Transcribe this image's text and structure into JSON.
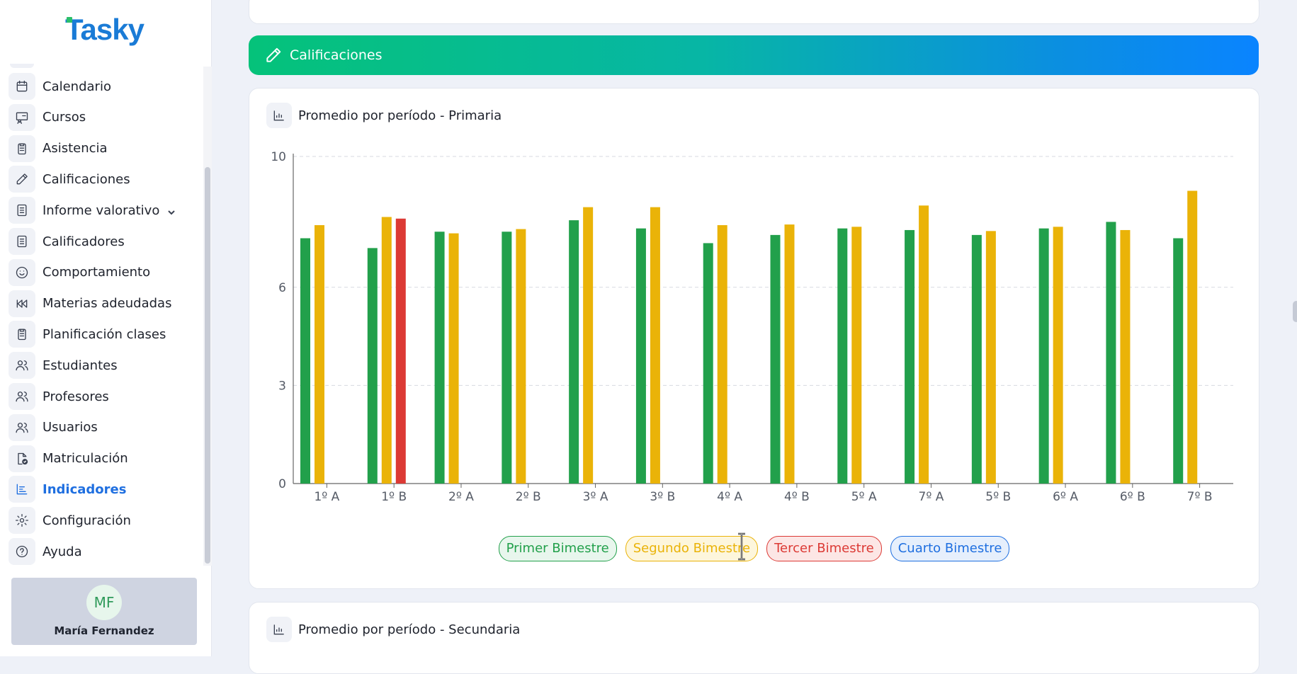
{
  "app": {
    "logo_text": "Tasky"
  },
  "sidebar": {
    "items": [
      {
        "label": "Calendario",
        "icon": "calendar-icon"
      },
      {
        "label": "Cursos",
        "icon": "course-icon"
      },
      {
        "label": "Asistencia",
        "icon": "clipboard-icon"
      },
      {
        "label": "Calificaciones",
        "icon": "pencil-icon"
      },
      {
        "label": "Informe valorativo",
        "icon": "document-icon",
        "expandable": true
      },
      {
        "label": "Calificadores",
        "icon": "document-icon"
      },
      {
        "label": "Comportamiento",
        "icon": "smiley-icon"
      },
      {
        "label": "Materias adeudadas",
        "icon": "rewind-icon"
      },
      {
        "label": "Planificación clases",
        "icon": "clipboard-icon"
      },
      {
        "label": "Estudiantes",
        "icon": "users-icon"
      },
      {
        "label": "Profesores",
        "icon": "users-icon"
      },
      {
        "label": "Usuarios",
        "icon": "users-icon"
      },
      {
        "label": "Matriculación",
        "icon": "file-check-icon"
      },
      {
        "label": "Indicadores",
        "icon": "bar-list-icon",
        "active": true
      },
      {
        "label": "Configuración",
        "icon": "gear-icon"
      },
      {
        "label": "Ayuda",
        "icon": "help-icon"
      }
    ],
    "user": {
      "initials": "MF",
      "name": "María Fernandez"
    },
    "active_color": "#1f6fe0"
  },
  "banner": {
    "title": "Calificaciones",
    "icon": "pencil-icon"
  },
  "chart_card": {
    "title": "Promedio por período - Primaria",
    "icon": "bar-chart-icon"
  },
  "second_card": {
    "title": "Promedio por período - Secundaria",
    "icon": "bar-chart-icon"
  },
  "chart_data": {
    "type": "bar",
    "categories": [
      "1º A",
      "1º B",
      "2º A",
      "2º B",
      "3º A",
      "3º B",
      "4º A",
      "4º B",
      "5º A",
      "7º A",
      "5º B",
      "6º A",
      "6º B",
      "7º B"
    ],
    "series": [
      {
        "name": "Primer Bimestre",
        "color": "#22a04b",
        "values": [
          7.5,
          7.2,
          7.7,
          7.7,
          8.05,
          7.8,
          7.35,
          7.6,
          7.8,
          7.75,
          7.6,
          7.8,
          8.0,
          7.5
        ]
      },
      {
        "name": "Segundo Bimestre",
        "color": "#eab308",
        "values": [
          7.9,
          8.15,
          7.65,
          7.78,
          8.45,
          8.45,
          7.9,
          7.92,
          7.85,
          8.5,
          7.72,
          7.85,
          7.75,
          8.95
        ]
      },
      {
        "name": "Tercer Bimestre",
        "color": "#dc3a35",
        "values": [
          null,
          8.1,
          null,
          null,
          null,
          null,
          null,
          null,
          null,
          null,
          null,
          null,
          null,
          null
        ]
      },
      {
        "name": "Cuarto Bimestre",
        "color": "#1f6fe0",
        "values": [
          null,
          null,
          null,
          null,
          null,
          null,
          null,
          null,
          null,
          null,
          null,
          null,
          null,
          null
        ]
      }
    ],
    "y_ticks": [
      0,
      3,
      6,
      10
    ],
    "ylim": [
      0,
      10
    ],
    "grid": true,
    "legend": "bottom-center"
  }
}
